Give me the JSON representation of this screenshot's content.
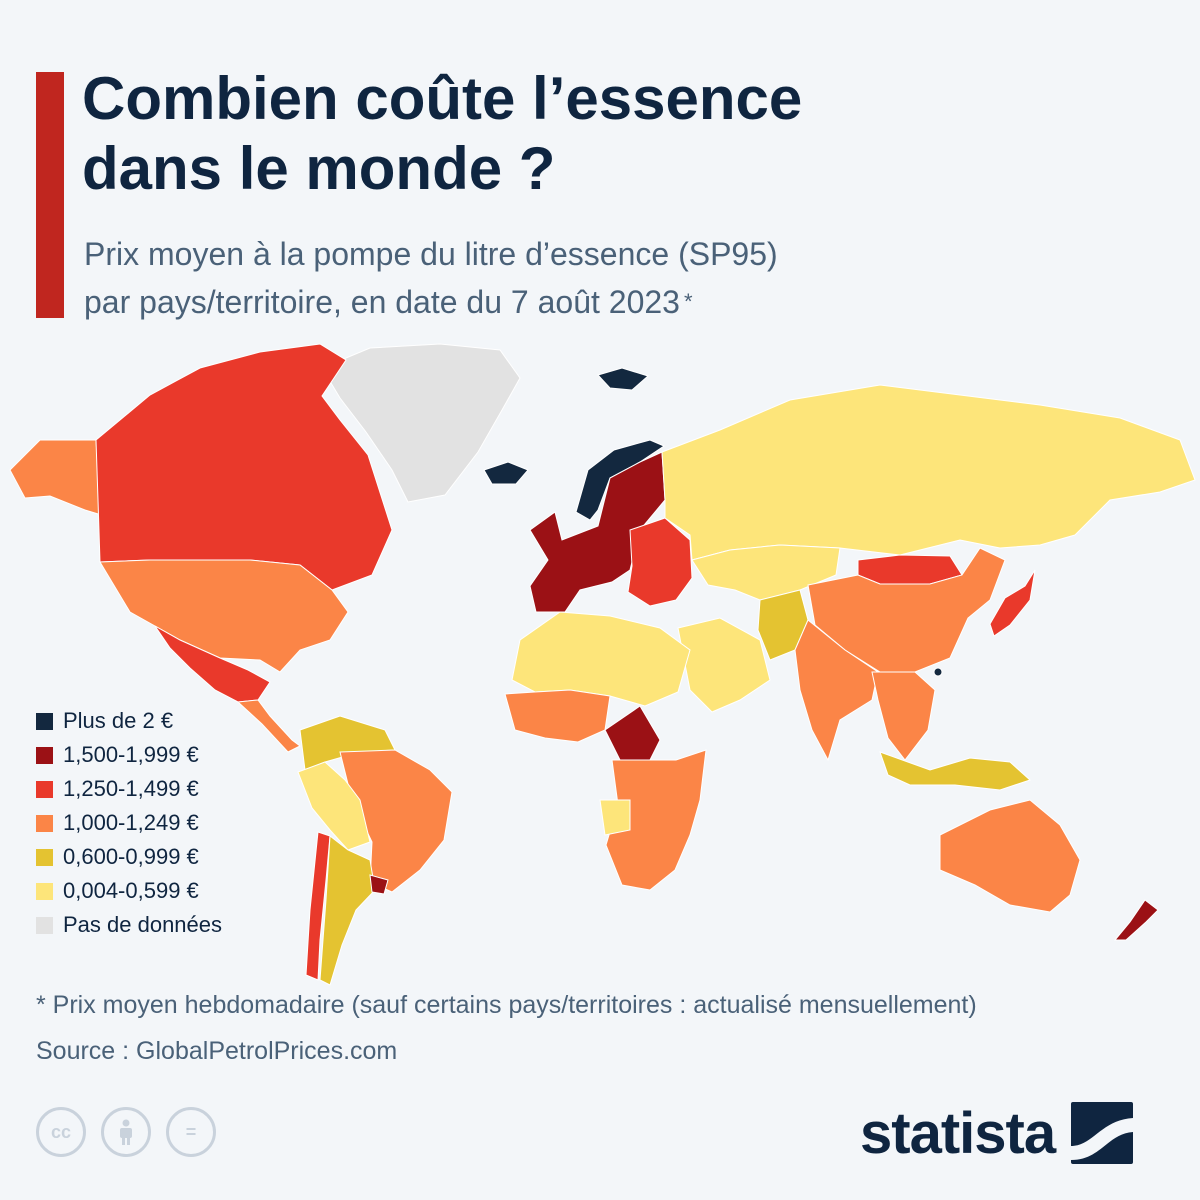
{
  "header": {
    "title_line1": "Combien coûte l’essence",
    "title_line2": "dans le monde ?",
    "subtitle_line1": "Prix moyen à la pompe du litre d’essence (SP95)",
    "subtitle_line2": "par pays/territoire, en date du 7 août 2023",
    "subtitle_marker": "*"
  },
  "legend": [
    {
      "label": "Plus de 2 €",
      "color": "#13283f"
    },
    {
      "label": "1,500-1,999 €",
      "color": "#9b1115"
    },
    {
      "label": "1,250-1,499 €",
      "color": "#e9392b"
    },
    {
      "label": "1,000-1,249 €",
      "color": "#fb8547"
    },
    {
      "label": "0,600-0,999 €",
      "color": "#e4c331"
    },
    {
      "label": "0,004-0,599 €",
      "color": "#fde57a"
    },
    {
      "label": "Pas de données",
      "color": "#e2e2e2"
    }
  ],
  "map_regions": [
    {
      "region": "Greenland",
      "category": "Pas de données"
    },
    {
      "region": "Alaska",
      "category": "1,000-1,249 €"
    },
    {
      "region": "Canada",
      "category": "1,250-1,499 €"
    },
    {
      "region": "United States",
      "category": "1,000-1,249 €"
    },
    {
      "region": "Mexico",
      "category": "1,250-1,499 €"
    },
    {
      "region": "Central America",
      "category": "1,000-1,249 €"
    },
    {
      "region": "Venezuela & Colombia",
      "category": "0,600-0,999 €"
    },
    {
      "region": "Brazil",
      "category": "1,000-1,249 €"
    },
    {
      "region": "Peru & Bolivia",
      "category": "0,004-0,599 €"
    },
    {
      "region": "Chile",
      "category": "1,250-1,499 €"
    },
    {
      "region": "Argentina",
      "category": "0,600-0,999 €"
    },
    {
      "region": "Uruguay",
      "category": "1,500-1,999 €"
    },
    {
      "region": "Iceland",
      "category": "Plus de 2 €"
    },
    {
      "region": "Norway",
      "category": "Plus de 2 €"
    },
    {
      "region": "Svalbard",
      "category": "Plus de 2 €"
    },
    {
      "region": "Western Europe",
      "category": "1,500-1,999 €"
    },
    {
      "region": "Eastern Europe",
      "category": "1,250-1,499 €"
    },
    {
      "region": "Russia",
      "category": "0,004-0,599 €"
    },
    {
      "region": "Central Asia",
      "category": "0,004-0,599 €"
    },
    {
      "region": "Mongolia",
      "category": "1,250-1,499 €"
    },
    {
      "region": "China",
      "category": "1,000-1,249 €"
    },
    {
      "region": "India",
      "category": "1,000-1,249 €"
    },
    {
      "region": "Pakistan & Afghanistan",
      "category": "0,600-0,999 €"
    },
    {
      "region": "Japan",
      "category": "1,250-1,499 €"
    },
    {
      "region": "Southeast Asia",
      "category": "1,000-1,249 €"
    },
    {
      "region": "Indonesia",
      "category": "0,600-0,999 €"
    },
    {
      "region": "Arabian Peninsula",
      "category": "0,004-0,599 €"
    },
    {
      "region": "North Africa",
      "category": "0,004-0,599 €"
    },
    {
      "region": "West Africa",
      "category": "1,000-1,249 €"
    },
    {
      "region": "Central Africa",
      "category": "1,500-1,999 €"
    },
    {
      "region": "Southern Africa",
      "category": "1,000-1,249 €"
    },
    {
      "region": "Angola",
      "category": "0,004-0,599 €"
    },
    {
      "region": "Australia",
      "category": "1,000-1,249 €"
    },
    {
      "region": "New Zealand",
      "category": "1,500-1,999 €"
    },
    {
      "region": "Hong Kong",
      "category": "Plus de 2 €"
    }
  ],
  "footer": {
    "footnote": "* Prix moyen hebdomadaire (sauf certains pays/territoires : actualisé mensuellement)",
    "source": "Source : GlobalPetrolPrices.com",
    "brand": "statista",
    "cc_icons": [
      "cc-icon",
      "attribution-icon",
      "no-derivatives-icon"
    ],
    "cc_symbols": [
      "cc",
      "="
    ]
  }
}
